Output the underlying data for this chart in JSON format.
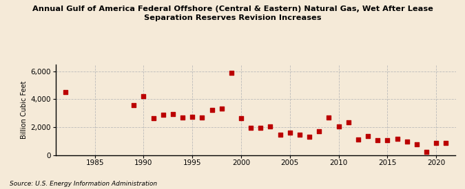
{
  "title": "Annual Gulf of America Federal Offshore (Central & Eastern) Natural Gas, Wet After Lease\nSeparation Reserves Revision Increases",
  "ylabel": "Billion Cubic Feet",
  "source": "Source: U.S. Energy Information Administration",
  "background_color": "#f5ead8",
  "marker_color": "#bb0000",
  "grid_color": "#bbbbbb",
  "years": [
    1982,
    1989,
    1990,
    1991,
    1992,
    1993,
    1994,
    1995,
    1996,
    1997,
    1998,
    1999,
    2000,
    2001,
    2002,
    2003,
    2004,
    2005,
    2006,
    2007,
    2008,
    2009,
    2010,
    2011,
    2012,
    2013,
    2014,
    2015,
    2016,
    2017,
    2018,
    2019,
    2020,
    2021
  ],
  "values": [
    4500,
    3550,
    4200,
    2650,
    2900,
    2950,
    2700,
    2750,
    2700,
    3250,
    3300,
    5900,
    2650,
    1950,
    1950,
    2050,
    1450,
    1600,
    1450,
    1300,
    1700,
    2700,
    2050,
    2350,
    1100,
    1350,
    1050,
    1050,
    1150,
    950,
    750,
    200,
    850,
    850
  ],
  "xlim": [
    1981,
    2022
  ],
  "ylim": [
    0,
    6500
  ],
  "yticks": [
    0,
    2000,
    4000,
    6000
  ],
  "xticks": [
    1985,
    1990,
    1995,
    2000,
    2005,
    2010,
    2015,
    2020
  ]
}
